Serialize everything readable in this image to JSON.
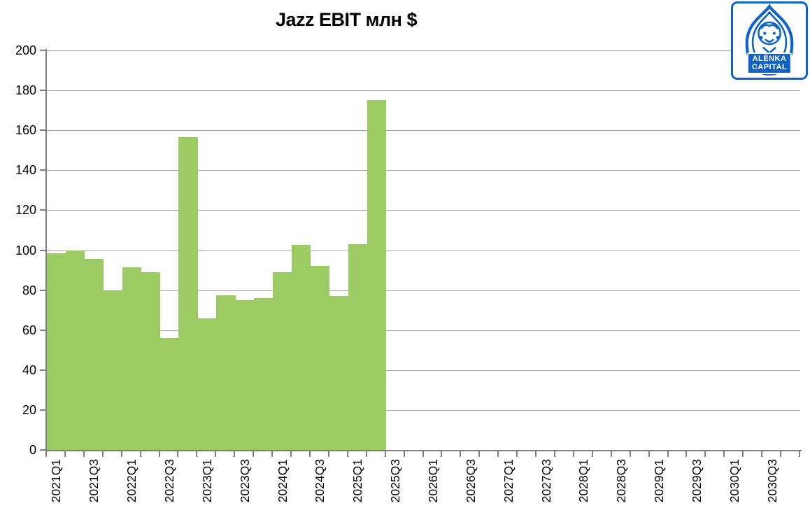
{
  "title": "Jazz EBIT млн $",
  "logo": {
    "name": "Alenka Capital",
    "line1": "ALËNKA",
    "line2": "CAPITAL",
    "color": "#1062C4"
  },
  "chart_data": {
    "type": "bar",
    "title": "Jazz EBIT млн $",
    "categories": [
      "2021Q1",
      "2021Q2",
      "2021Q3",
      "2021Q4",
      "2022Q1",
      "2022Q2",
      "2022Q3",
      "2022Q4",
      "2023Q1",
      "2023Q2",
      "2023Q3",
      "2023Q4",
      "2024Q1",
      "2024Q2",
      "2024Q3",
      "2024Q4",
      "2025Q1",
      "2025Q2"
    ],
    "values": [
      98.5,
      100,
      95.5,
      79.5,
      91.5,
      89,
      56,
      156.5,
      66,
      77.5,
      75,
      76,
      89,
      102.5,
      92,
      77,
      103,
      175
    ],
    "x_tick_labels": [
      "2021Q1",
      "2021Q3",
      "2022Q1",
      "2022Q3",
      "2023Q1",
      "2023Q3",
      "2024Q1",
      "2024Q3",
      "2025Q1",
      "2025Q3",
      "2026Q1",
      "2026Q3",
      "2027Q1",
      "2027Q3",
      "2028Q1",
      "2028Q3",
      "2029Q1",
      "2029Q3",
      "2030Q1",
      "2030Q3"
    ],
    "x_total_slots": 40,
    "ylim": [
      0,
      200
    ],
    "y_ticks": [
      0,
      20,
      40,
      60,
      80,
      100,
      120,
      140,
      160,
      180,
      200
    ],
    "xlabel": "",
    "ylabel": "",
    "grid": true,
    "legend_position": "none",
    "bar_color": "#9DCB63",
    "gridline_color": "#A6A6A6",
    "axis_color": "#808080"
  }
}
